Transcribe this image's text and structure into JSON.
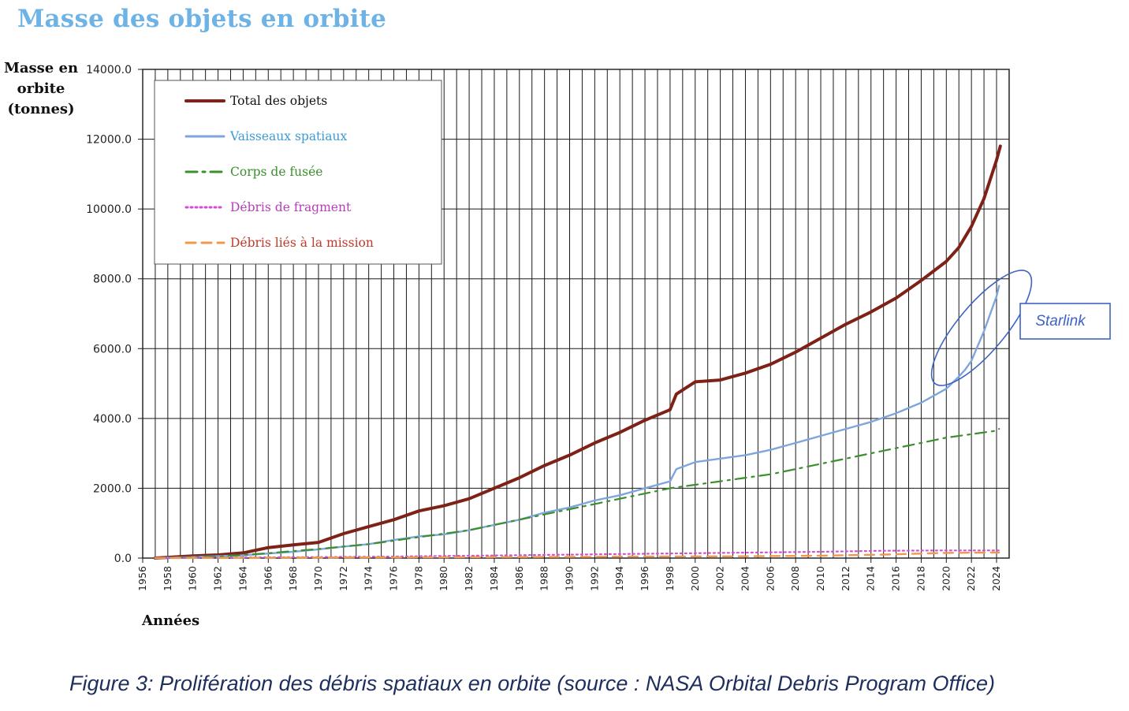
{
  "title": "Masse des objets en orbite",
  "caption": "Figure 3: Prolifération des débris spatiaux en orbite (source : NASA Orbital Debris Program Office)",
  "chart_data": {
    "type": "line",
    "ylabel_lines": [
      "Masse en",
      "orbite",
      "(tonnes)"
    ],
    "xlabel": "Années",
    "xlim": [
      1956,
      2025
    ],
    "ylim": [
      0,
      14000
    ],
    "x_ticks": [
      "1956",
      "1958",
      "1960",
      "1962",
      "1964",
      "1966",
      "1968",
      "1970",
      "1972",
      "1974",
      "1976",
      "1978",
      "1980",
      "1982",
      "1984",
      "1986",
      "1988",
      "1990",
      "1992",
      "1994",
      "1996",
      "1998",
      "2000",
      "2002",
      "2004",
      "2006",
      "2008",
      "2010",
      "2012",
      "2014",
      "2016",
      "2018",
      "2020",
      "2022",
      "2024"
    ],
    "y_ticks": [
      "0.0",
      "2000.0",
      "4000.0",
      "6000.0",
      "8000.0",
      "10000.0",
      "12000.0",
      "14000.0"
    ],
    "grid": true,
    "legend_position": "top-left",
    "series": [
      {
        "name": "Total des objets",
        "color": "#7e2218",
        "style": "solid",
        "x": [
          1957,
          1958,
          1960,
          1962,
          1964,
          1966,
          1968,
          1970,
          1972,
          1974,
          1976,
          1978,
          1980,
          1982,
          1984,
          1986,
          1988,
          1990,
          1992,
          1994,
          1996,
          1998,
          1998.5,
          2000,
          2002,
          2004,
          2006,
          2008,
          2010,
          2012,
          2014,
          2016,
          2018,
          2020,
          2021,
          2022,
          2023,
          2024,
          2024.3
        ],
        "y": [
          0,
          20,
          60,
          90,
          150,
          300,
          380,
          450,
          700,
          900,
          1100,
          1350,
          1500,
          1700,
          2000,
          2300,
          2650,
          2950,
          3300,
          3600,
          3950,
          4250,
          4700,
          5050,
          5100,
          5300,
          5550,
          5900,
          6300,
          6700,
          7050,
          7450,
          7950,
          8500,
          8900,
          9500,
          10300,
          11400,
          11800
        ]
      },
      {
        "name": "Vaisseaux spatiaux",
        "color": "#7ea6dd",
        "style": "solid",
        "x": [
          1957,
          1960,
          1964,
          1966,
          1968,
          1970,
          1972,
          1974,
          1976,
          1978,
          1980,
          1982,
          1984,
          1986,
          1988,
          1990,
          1992,
          1994,
          1996,
          1998,
          1998.5,
          2000,
          2002,
          2004,
          2006,
          2008,
          2010,
          2012,
          2014,
          2016,
          2018,
          2020,
          2021,
          2021.5,
          2022,
          2023,
          2024,
          2024.2
        ],
        "y": [
          0,
          30,
          80,
          130,
          180,
          250,
          330,
          400,
          520,
          620,
          680,
          800,
          950,
          1100,
          1300,
          1450,
          1650,
          1800,
          2000,
          2200,
          2550,
          2750,
          2850,
          2950,
          3100,
          3300,
          3500,
          3700,
          3900,
          4150,
          4450,
          4850,
          5200,
          5400,
          5650,
          6500,
          7500,
          7800
        ]
      },
      {
        "name": "Corps de fusée",
        "color": "#3c8f2e",
        "style": "dashdot",
        "x": [
          1957,
          1962,
          1964,
          1966,
          1968,
          1970,
          1972,
          1974,
          1976,
          1978,
          1980,
          1982,
          1984,
          1986,
          1988,
          1990,
          1992,
          1994,
          1996,
          1998,
          2000,
          2002,
          2004,
          2006,
          2008,
          2010,
          2012,
          2014,
          2016,
          2018,
          2020,
          2022,
          2024,
          2024.2
        ],
        "y": [
          0,
          40,
          90,
          140,
          200,
          260,
          330,
          400,
          500,
          600,
          700,
          800,
          950,
          1100,
          1250,
          1400,
          1550,
          1700,
          1850,
          2000,
          2100,
          2200,
          2300,
          2400,
          2550,
          2700,
          2850,
          3000,
          3150,
          3300,
          3450,
          3550,
          3650,
          3700
        ]
      },
      {
        "name": "Débris de fragment",
        "color": "#d24fd6",
        "style": "dotted",
        "x": [
          1957,
          1965,
          1970,
          1975,
          1980,
          1985,
          1990,
          1995,
          2000,
          2005,
          2010,
          2015,
          2020,
          2024.2
        ],
        "y": [
          0,
          20,
          30,
          40,
          60,
          80,
          100,
          120,
          140,
          160,
          180,
          210,
          220,
          220
        ]
      },
      {
        "name": "Débris liés à la mission",
        "color": "#f0984e",
        "style": "dashed",
        "x": [
          1957,
          1965,
          1970,
          1975,
          1980,
          1985,
          1990,
          1995,
          2000,
          2005,
          2010,
          2015,
          2020,
          2024.2
        ],
        "y": [
          0,
          10,
          15,
          20,
          25,
          30,
          35,
          40,
          45,
          55,
          70,
          100,
          150,
          160
        ]
      }
    ],
    "annotations": [
      {
        "label": "Starlink",
        "color": "#3d63c4"
      }
    ]
  }
}
